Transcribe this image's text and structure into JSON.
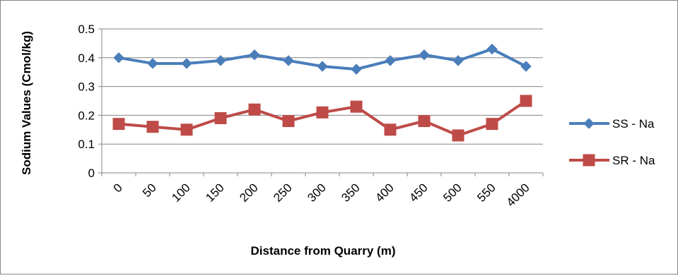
{
  "chart_data": {
    "type": "line",
    "title": "",
    "xlabel": "Distance from Quarry (m)",
    "ylabel": "Sodium Values (Cmol/kg)",
    "categories": [
      "0",
      "50",
      "100",
      "150",
      "200",
      "250",
      "300",
      "350",
      "400",
      "450",
      "500",
      "550",
      "4000"
    ],
    "ylim": [
      0,
      0.5
    ],
    "yticks": [
      "0",
      "0.1",
      "0.2",
      "0.3",
      "0.4",
      "0.5"
    ],
    "grid": true,
    "legend_position": "right",
    "series": [
      {
        "name": "SS - Na",
        "marker": "diamond",
        "color": "#4a7ebb",
        "values": [
          0.4,
          0.38,
          0.38,
          0.39,
          0.41,
          0.39,
          0.37,
          0.36,
          0.39,
          0.41,
          0.39,
          0.43,
          0.37
        ]
      },
      {
        "name": "SR - Na",
        "marker": "square",
        "color": "#be4b48",
        "values": [
          0.17,
          0.16,
          0.15,
          0.19,
          0.22,
          0.18,
          0.21,
          0.23,
          0.15,
          0.18,
          0.13,
          0.17,
          0.25
        ]
      }
    ]
  }
}
